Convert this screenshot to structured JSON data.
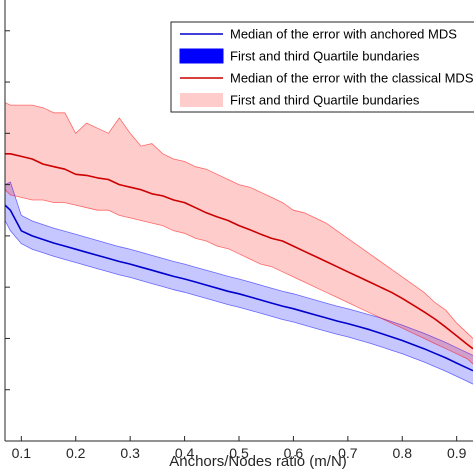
{
  "chart_data": {
    "type": "line",
    "title": "",
    "xlabel": "Anchors/Nodes ratio (m/N)",
    "ylabel": "",
    "xlim": [
      0.07,
      0.93
    ],
    "ylim": [
      0,
      0.86
    ],
    "x_ticks": [
      0.1,
      0.2,
      0.3,
      0.4,
      0.5,
      0.6,
      0.7,
      0.8,
      0.9
    ],
    "x_tick_labels": [
      "0.1",
      "0.2",
      "0.3",
      "0.4",
      "0.5",
      "0.6",
      "0.7",
      "0.8",
      "0.9"
    ],
    "y_ticks": [
      0.1,
      0.2,
      0.3,
      0.4,
      0.5,
      0.6,
      0.7,
      0.8
    ],
    "grid": false,
    "legend_position": "top-right",
    "x": [
      0.07,
      0.08,
      0.1,
      0.12,
      0.14,
      0.16,
      0.18,
      0.2,
      0.22,
      0.24,
      0.26,
      0.28,
      0.3,
      0.32,
      0.34,
      0.36,
      0.38,
      0.4,
      0.42,
      0.44,
      0.46,
      0.48,
      0.5,
      0.52,
      0.54,
      0.56,
      0.58,
      0.6,
      0.62,
      0.64,
      0.66,
      0.68,
      0.7,
      0.72,
      0.74,
      0.76,
      0.78,
      0.8,
      0.82,
      0.84,
      0.86,
      0.88,
      0.9,
      0.92,
      0.93
    ],
    "series": [
      {
        "name": "Median of the error with anchored MDS",
        "kind": "line",
        "color": "#0000cc",
        "values": [
          0.46,
          0.45,
          0.41,
          0.4,
          0.393,
          0.386,
          0.38,
          0.374,
          0.368,
          0.362,
          0.356,
          0.35,
          0.345,
          0.339,
          0.333,
          0.327,
          0.321,
          0.316,
          0.31,
          0.304,
          0.298,
          0.292,
          0.287,
          0.281,
          0.275,
          0.269,
          0.263,
          0.258,
          0.252,
          0.246,
          0.24,
          0.234,
          0.229,
          0.223,
          0.217,
          0.21,
          0.203,
          0.196,
          0.188,
          0.18,
          0.171,
          0.162,
          0.152,
          0.142,
          0.137
        ]
      },
      {
        "name": "First and third Quartile bundaries",
        "kind": "band",
        "color": "#0000ff",
        "fill_opacity": 0.22,
        "lower": [
          0.43,
          0.41,
          0.385,
          0.374,
          0.367,
          0.36,
          0.354,
          0.348,
          0.342,
          0.336,
          0.33,
          0.324,
          0.319,
          0.313,
          0.307,
          0.301,
          0.295,
          0.29,
          0.284,
          0.278,
          0.272,
          0.266,
          0.261,
          0.255,
          0.249,
          0.243,
          0.237,
          0.232,
          0.226,
          0.22,
          0.214,
          0.208,
          0.203,
          0.197,
          0.191,
          0.184,
          0.177,
          0.17,
          0.162,
          0.154,
          0.145,
          0.136,
          0.126,
          0.116,
          0.111
        ],
        "upper": [
          0.5,
          0.505,
          0.44,
          0.429,
          0.422,
          0.415,
          0.409,
          0.403,
          0.397,
          0.391,
          0.385,
          0.379,
          0.374,
          0.368,
          0.362,
          0.356,
          0.35,
          0.345,
          0.339,
          0.333,
          0.327,
          0.321,
          0.316,
          0.31,
          0.304,
          0.298,
          0.292,
          0.287,
          0.281,
          0.275,
          0.269,
          0.263,
          0.258,
          0.252,
          0.246,
          0.24,
          0.233,
          0.226,
          0.218,
          0.21,
          0.201,
          0.192,
          0.182,
          0.172,
          0.167
        ]
      },
      {
        "name": "Median of the error with the classical MDS",
        "kind": "line",
        "color": "#cc0000",
        "values": [
          0.56,
          0.56,
          0.555,
          0.55,
          0.54,
          0.535,
          0.53,
          0.52,
          0.518,
          0.513,
          0.51,
          0.5,
          0.495,
          0.49,
          0.482,
          0.478,
          0.47,
          0.465,
          0.455,
          0.445,
          0.437,
          0.43,
          0.42,
          0.412,
          0.403,
          0.395,
          0.39,
          0.38,
          0.37,
          0.36,
          0.35,
          0.34,
          0.33,
          0.32,
          0.31,
          0.3,
          0.29,
          0.278,
          0.265,
          0.252,
          0.238,
          0.222,
          0.205,
          0.188,
          0.18
        ]
      },
      {
        "name": "First and third Quartile bundaries",
        "kind": "band",
        "color": "#ff0000",
        "fill_opacity": 0.2,
        "lower": [
          0.49,
          0.48,
          0.475,
          0.47,
          0.47,
          0.465,
          0.465,
          0.46,
          0.455,
          0.45,
          0.45,
          0.44,
          0.435,
          0.43,
          0.425,
          0.42,
          0.41,
          0.405,
          0.395,
          0.39,
          0.38,
          0.375,
          0.365,
          0.355,
          0.345,
          0.34,
          0.33,
          0.32,
          0.31,
          0.3,
          0.29,
          0.28,
          0.27,
          0.26,
          0.25,
          0.24,
          0.23,
          0.22,
          0.21,
          0.2,
          0.19,
          0.18,
          0.17,
          0.16,
          0.15
        ],
        "upper": [
          0.66,
          0.655,
          0.655,
          0.655,
          0.65,
          0.64,
          0.64,
          0.6,
          0.62,
          0.61,
          0.6,
          0.63,
          0.6,
          0.575,
          0.58,
          0.56,
          0.55,
          0.545,
          0.535,
          0.53,
          0.52,
          0.51,
          0.5,
          0.495,
          0.485,
          0.475,
          0.465,
          0.45,
          0.445,
          0.435,
          0.425,
          0.41,
          0.395,
          0.38,
          0.365,
          0.35,
          0.335,
          0.32,
          0.305,
          0.29,
          0.27,
          0.255,
          0.23,
          0.21,
          0.2
        ]
      }
    ],
    "legend": [
      {
        "label": "Median of the error with anchored MDS",
        "kind": "line",
        "color": "#0000cc"
      },
      {
        "label": "First and third Quartile bundaries",
        "kind": "patch",
        "color": "#0000ff",
        "fill_opacity": 1.0
      },
      {
        "label": "Median of the error with the classical MDS",
        "kind": "line",
        "color": "#cc0000"
      },
      {
        "label": "First and third Quartile bundaries",
        "kind": "patch",
        "color": "#ff0000",
        "fill_opacity": 0.2
      }
    ]
  }
}
